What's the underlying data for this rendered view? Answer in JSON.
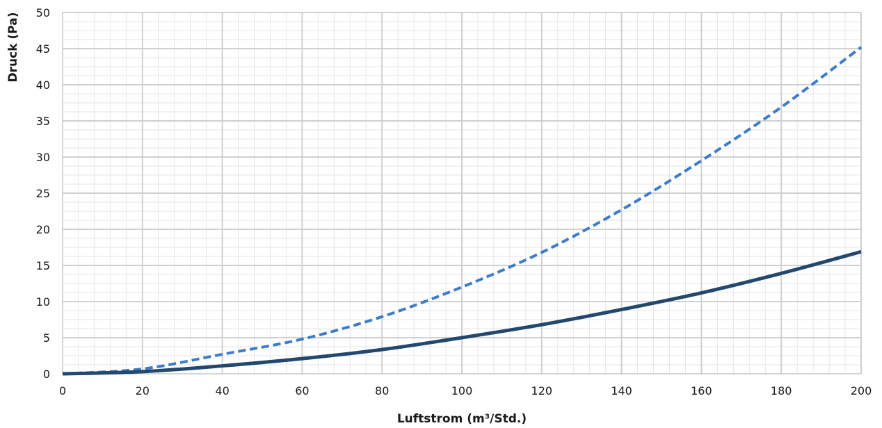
{
  "chart_data": {
    "type": "line",
    "title": "",
    "xlabel": "Luftstrom (m³/Std.)",
    "ylabel": "Druck (Pa)",
    "xlim": [
      0,
      200
    ],
    "ylim": [
      0,
      50
    ],
    "x_ticks": [
      "0",
      "20",
      "40",
      "60",
      "80",
      "100",
      "120",
      "140",
      "160",
      "180",
      "200"
    ],
    "y_ticks": [
      "0",
      "5",
      "10",
      "15",
      "20",
      "25",
      "30",
      "35",
      "40",
      "45",
      "50"
    ],
    "grid": true,
    "legend": "none",
    "x": [
      0,
      20,
      40,
      60,
      80,
      100,
      120,
      140,
      160,
      180,
      200
    ],
    "series": [
      {
        "values": [
          0,
          0.68,
          2.7,
          4.8,
          7.9,
          12.0,
          16.8,
          22.7,
          29.5,
          36.9,
          45.2
        ],
        "color": "#3d7cc9",
        "dash": "dashed"
      },
      {
        "values": [
          0,
          0.3,
          1.1,
          2.1,
          3.35,
          5.0,
          6.8,
          8.9,
          11.2,
          13.9,
          16.9
        ],
        "color": "#23486e",
        "dash": "solid"
      }
    ]
  }
}
